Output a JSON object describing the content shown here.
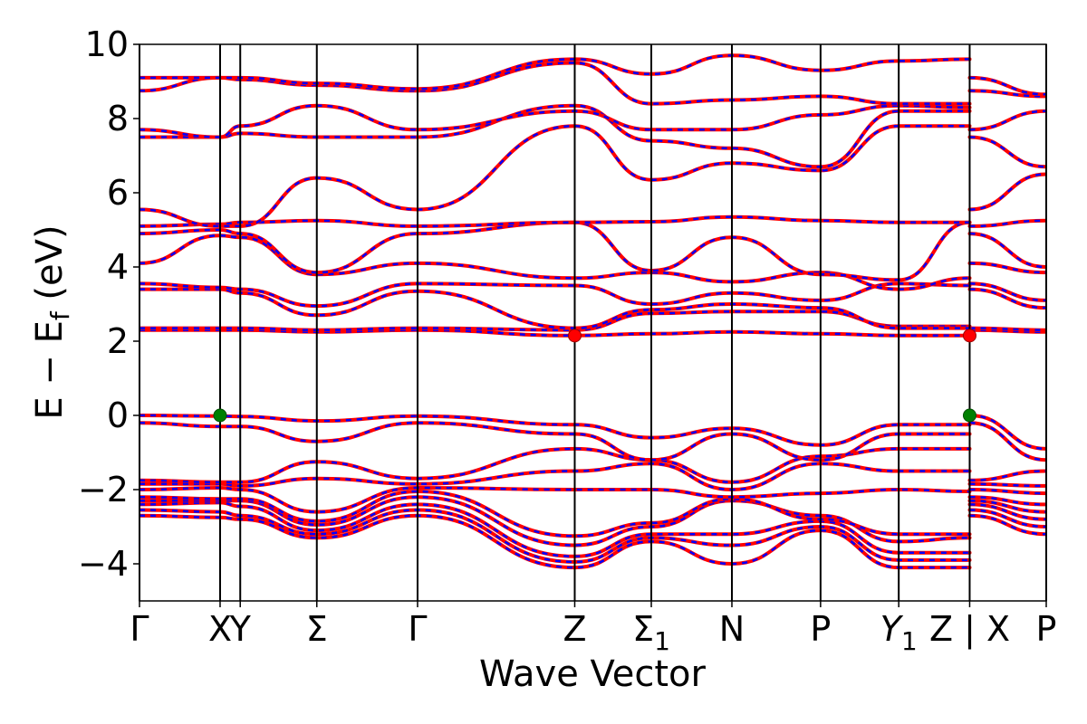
{
  "chart_data": {
    "type": "line",
    "xlabel": "Wave Vector",
    "ylabel": "E − E",
    "ylabel_sub": "f",
    "ylabel_unit": " (eV)",
    "ylim": [
      -5,
      10
    ],
    "yticks": [
      -4,
      -2,
      0,
      2,
      4,
      6,
      8,
      10
    ],
    "ytick_labels": [
      "−4",
      "−2",
      "0",
      "2",
      "4",
      "6",
      "8",
      "10"
    ],
    "xlim": [
      0,
      11.25
    ],
    "kpoints": [
      {
        "x": 0.0,
        "label": "Γ"
      },
      {
        "x": 1.0,
        "label": "X"
      },
      {
        "x": 1.25,
        "label": "Y"
      },
      {
        "x": 2.2,
        "label": "Σ"
      },
      {
        "x": 3.45,
        "label": "Γ"
      },
      {
        "x": 5.4,
        "label": "Z"
      },
      {
        "x": 6.35,
        "label": "Σ",
        "sub": "1"
      },
      {
        "x": 7.35,
        "label": "N"
      },
      {
        "x": 8.45,
        "label": "P"
      },
      {
        "x": 9.42,
        "label": "Y",
        "sub": "1",
        "italic": true
      },
      {
        "x": 10.3,
        "label": "Z | X"
      },
      {
        "x": 11.25,
        "label": "P"
      }
    ],
    "legend": "none",
    "grid": false,
    "colors": {
      "spin_up": "#ff0000",
      "spin_down": "#0000ff",
      "vbm": "#008000",
      "cbm": "#ff0000"
    },
    "band_x": [
      0,
      1.0,
      1.25,
      2.2,
      3.45,
      5.4,
      6.35,
      7.35,
      8.45,
      9.42,
      10.3,
      10.3,
      11.25
    ],
    "bands": [
      [
        -2.7,
        -2.75,
        -2.8,
        -3.3,
        -2.7,
        -4.1,
        -3.4,
        -4.0,
        -3.1,
        -4.1,
        -4.1,
        -2.7,
        -3.2
      ],
      [
        -2.55,
        -2.6,
        -2.7,
        -3.2,
        -2.55,
        -3.95,
        -3.3,
        -3.5,
        -3.0,
        -3.9,
        -3.9,
        -2.55,
        -3.0
      ],
      [
        -2.4,
        -2.35,
        -2.45,
        -3.1,
        -2.4,
        -3.8,
        -3.2,
        -3.2,
        -2.85,
        -3.7,
        -3.7,
        -2.4,
        -2.8
      ],
      [
        -2.3,
        -2.3,
        -2.3,
        -2.95,
        -2.2,
        -3.5,
        -3.0,
        -2.3,
        -2.7,
        -3.4,
        -3.3,
        -2.3,
        -2.6
      ],
      [
        -2.2,
        -2.25,
        -2.25,
        -2.85,
        -2.05,
        -3.25,
        -2.9,
        -2.25,
        -2.8,
        -3.2,
        -3.2,
        -2.2,
        -2.4
      ],
      [
        -2.0,
        -1.95,
        -2.0,
        -2.6,
        -1.95,
        -2.0,
        -2.0,
        -2.2,
        -2.1,
        -2.0,
        -2.05,
        -2.0,
        -2.1
      ],
      [
        -1.85,
        -1.85,
        -1.9,
        -1.7,
        -1.85,
        -1.5,
        -1.3,
        -2.0,
        -1.3,
        -1.5,
        -1.5,
        -1.85,
        -1.9
      ],
      [
        -1.75,
        -1.8,
        -1.8,
        -1.25,
        -1.7,
        -0.9,
        -1.2,
        -1.8,
        -1.1,
        -0.9,
        -0.9,
        -1.75,
        -1.5
      ],
      [
        -0.2,
        -0.3,
        -0.3,
        -0.7,
        -0.2,
        -0.5,
        -1.2,
        -0.5,
        -1.2,
        -0.5,
        -0.5,
        -0.2,
        -1.2
      ],
      [
        0.0,
        -0.02,
        -0.03,
        -0.15,
        -0.02,
        -0.25,
        -0.6,
        -0.35,
        -0.8,
        -0.25,
        -0.25,
        0.0,
        -0.9
      ],
      [
        2.3,
        2.3,
        2.3,
        2.25,
        2.3,
        2.15,
        2.2,
        2.25,
        2.2,
        2.15,
        2.15,
        2.3,
        2.25
      ],
      [
        2.35,
        2.35,
        2.35,
        2.3,
        2.35,
        2.3,
        2.75,
        2.8,
        2.8,
        2.4,
        2.4,
        2.35,
        2.3
      ],
      [
        3.4,
        3.4,
        3.3,
        2.7,
        3.35,
        2.35,
        2.85,
        3.0,
        2.9,
        2.35,
        2.35,
        3.4,
        2.9
      ],
      [
        3.55,
        3.45,
        3.4,
        2.95,
        3.55,
        3.5,
        3.0,
        3.3,
        3.1,
        3.55,
        3.5,
        3.55,
        3.1
      ],
      [
        4.1,
        4.85,
        4.8,
        3.8,
        4.1,
        3.7,
        3.85,
        3.6,
        3.85,
        3.4,
        3.7,
        4.1,
        3.85
      ],
      [
        4.9,
        5.0,
        4.9,
        3.85,
        4.9,
        5.2,
        3.9,
        4.8,
        3.8,
        3.65,
        5.2,
        4.9,
        4.0
      ],
      [
        5.1,
        5.15,
        5.2,
        5.25,
        5.1,
        5.2,
        5.22,
        5.35,
        5.25,
        5.2,
        5.2,
        5.1,
        5.25
      ],
      [
        5.55,
        5.1,
        5.1,
        6.4,
        5.55,
        7.8,
        6.35,
        6.8,
        6.6,
        7.8,
        7.8,
        5.55,
        6.5
      ],
      [
        7.5,
        7.5,
        7.6,
        7.5,
        7.5,
        8.35,
        7.4,
        7.2,
        6.7,
        8.2,
        8.2,
        7.5,
        6.7
      ],
      [
        7.7,
        7.5,
        7.8,
        8.35,
        7.7,
        8.2,
        7.7,
        7.7,
        8.1,
        8.35,
        8.3,
        7.7,
        8.2
      ],
      [
        8.75,
        9.1,
        9.05,
        8.9,
        8.75,
        9.5,
        8.4,
        8.5,
        8.6,
        8.4,
        8.4,
        8.75,
        8.6
      ],
      [
        9.1,
        9.1,
        9.1,
        8.95,
        8.8,
        9.6,
        9.2,
        9.7,
        9.3,
        9.55,
        9.6,
        9.1,
        8.65
      ]
    ],
    "vbm_points": [
      {
        "x": 1.0,
        "y": 0.0
      },
      {
        "x": 10.3,
        "y": 0.0
      }
    ],
    "cbm_points": [
      {
        "x": 5.4,
        "y": 2.15
      },
      {
        "x": 10.3,
        "y": 2.15
      }
    ]
  }
}
